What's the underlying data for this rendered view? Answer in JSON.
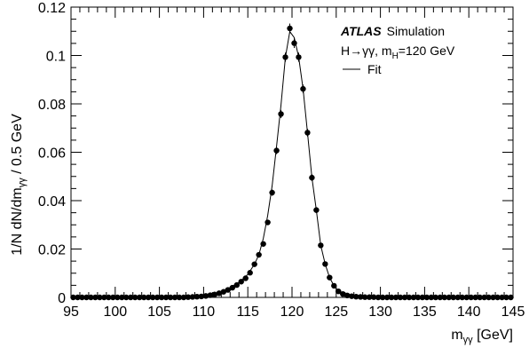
{
  "chart_data": {
    "type": "scatter",
    "title": "",
    "xlabel_main": "m",
    "xlabel_sub": "γγ",
    "xlabel_unit": " [GeV]",
    "ylabel_main": "1/N dN/dm",
    "ylabel_sub": "γγ",
    "ylabel_unit": " / 0.5 GeV",
    "xlim": [
      95,
      145
    ],
    "ylim": [
      0,
      0.12
    ],
    "xticks": [
      95,
      100,
      105,
      110,
      115,
      120,
      125,
      130,
      135,
      140,
      145
    ],
    "yticks": [
      0,
      0.02,
      0.04,
      0.06,
      0.08,
      0.1,
      0.12
    ],
    "ytick_labels": [
      "0",
      "0.02",
      "0.04",
      "0.06",
      "0.08",
      "0.1",
      "0.12"
    ],
    "grid": false,
    "legend_position": "top-right",
    "legend": {
      "experiment": "ATLAS",
      "experiment_note": "Simulation",
      "process": "H→γγ, m",
      "process_sub": "H",
      "process_value": "=120 GeV",
      "fit_label": "Fit"
    },
    "series": [
      {
        "name": "Fit",
        "kind": "line",
        "x": [
          95,
          105,
          108,
          110,
          111,
          112,
          113,
          114,
          115,
          115.75,
          116.25,
          116.75,
          117.25,
          117.75,
          118.25,
          118.75,
          119.25,
          119.75,
          120.25,
          120.75,
          121.25,
          121.75,
          122.25,
          122.75,
          123.25,
          123.75,
          124.25,
          124.75,
          125.25,
          125.75,
          126.25,
          126.75,
          127.5,
          129,
          132,
          145
        ],
        "y": [
          0,
          0,
          0.0002,
          0.0005,
          0.0012,
          0.0025,
          0.004,
          0.0062,
          0.0095,
          0.0137,
          0.0176,
          0.0243,
          0.0339,
          0.0461,
          0.0624,
          0.0794,
          0.0992,
          0.1099,
          0.1074,
          0.0994,
          0.0862,
          0.0681,
          0.0495,
          0.0361,
          0.0215,
          0.0138,
          0.0082,
          0.0048,
          0.0025,
          0.0012,
          0.0006,
          0.0003,
          0.0001,
          0,
          0,
          0
        ]
      },
      {
        "name": "",
        "kind": "points",
        "x": [
          95.25,
          95.75,
          96.25,
          96.75,
          97.25,
          97.75,
          98.25,
          98.75,
          99.25,
          99.75,
          100.25,
          100.75,
          101.25,
          101.75,
          102.25,
          102.75,
          103.25,
          103.75,
          104.25,
          104.75,
          105.25,
          105.75,
          106.25,
          106.75,
          107.25,
          107.75,
          108.25,
          108.75,
          109.25,
          109.75,
          110.25,
          110.75,
          111.25,
          111.75,
          112.25,
          112.75,
          113.25,
          113.75,
          114.25,
          114.75,
          115.25,
          115.75,
          116.25,
          116.75,
          117.25,
          117.75,
          118.25,
          118.75,
          119.25,
          119.75,
          120.25,
          120.75,
          121.25,
          121.75,
          122.25,
          122.75,
          123.25,
          123.75,
          124.25,
          124.75,
          125.25,
          125.75,
          126.25,
          126.75,
          127.25,
          127.75,
          128.25,
          128.75,
          129.25,
          129.75,
          130.25,
          130.75,
          131.25,
          131.75,
          132.25,
          132.75,
          133.25,
          133.75,
          134.25,
          134.75,
          135.25,
          135.75,
          136.25,
          136.75,
          137.25,
          137.75,
          138.25,
          138.75,
          139.25,
          139.75,
          140.25,
          140.75,
          141.25,
          141.75,
          142.25,
          142.75,
          143.25,
          143.75,
          144.25,
          144.75
        ],
        "y": [
          0,
          0,
          0,
          0,
          0,
          0,
          0,
          0,
          0,
          0,
          0,
          0,
          0,
          0,
          0,
          0,
          0,
          0,
          0,
          0,
          0,
          0,
          0,
          0,
          0,
          0,
          0.0001,
          0.0002,
          0.0003,
          0.0004,
          0.0006,
          0.0009,
          0.0012,
          0.0017,
          0.0023,
          0.0031,
          0.004,
          0.0051,
          0.0065,
          0.0079,
          0.0102,
          0.0137,
          0.0176,
          0.0221,
          0.031,
          0.0433,
          0.0607,
          0.0758,
          0.0993,
          0.1112,
          0.1051,
          0.0993,
          0.0862,
          0.0681,
          0.0495,
          0.0361,
          0.0215,
          0.0138,
          0.0082,
          0.0048,
          0.0025,
          0.0014,
          0.0008,
          0.0005,
          0.0003,
          0.0002,
          0.0001,
          0.0001,
          0.0001,
          0,
          0,
          0,
          0,
          0,
          0,
          0,
          0,
          0,
          0,
          0,
          0,
          0,
          0,
          0,
          0,
          0,
          0,
          0,
          0,
          0,
          0,
          0,
          0,
          0,
          0,
          0,
          0,
          0,
          0,
          0
        ],
        "err": [
          0,
          0,
          0,
          0,
          0,
          0,
          0,
          0,
          0,
          0,
          0,
          0,
          0,
          0,
          0,
          0,
          0,
          0,
          0,
          0,
          0,
          0,
          0,
          0,
          0,
          0,
          0.0001,
          0.0001,
          0.0001,
          0.0001,
          0.0001,
          0.0002,
          0.0002,
          0.0002,
          0.0003,
          0.0003,
          0.0004,
          0.0004,
          0.0005,
          0.0005,
          0.0006,
          0.0007,
          0.0008,
          0.0009,
          0.0011,
          0.0013,
          0.0015,
          0.0017,
          0.0019,
          0.002,
          0.002,
          0.0019,
          0.0018,
          0.0016,
          0.0014,
          0.0012,
          0.001,
          0.0008,
          0.0006,
          0.0005,
          0.0004,
          0.0003,
          0.0002,
          0.0002,
          0.0001,
          0.0001,
          0.0001,
          0.0001,
          0.0001,
          0,
          0,
          0,
          0,
          0,
          0,
          0,
          0,
          0,
          0,
          0,
          0,
          0,
          0,
          0,
          0,
          0,
          0,
          0,
          0,
          0,
          0,
          0,
          0,
          0,
          0,
          0,
          0,
          0,
          0,
          0
        ]
      }
    ]
  }
}
